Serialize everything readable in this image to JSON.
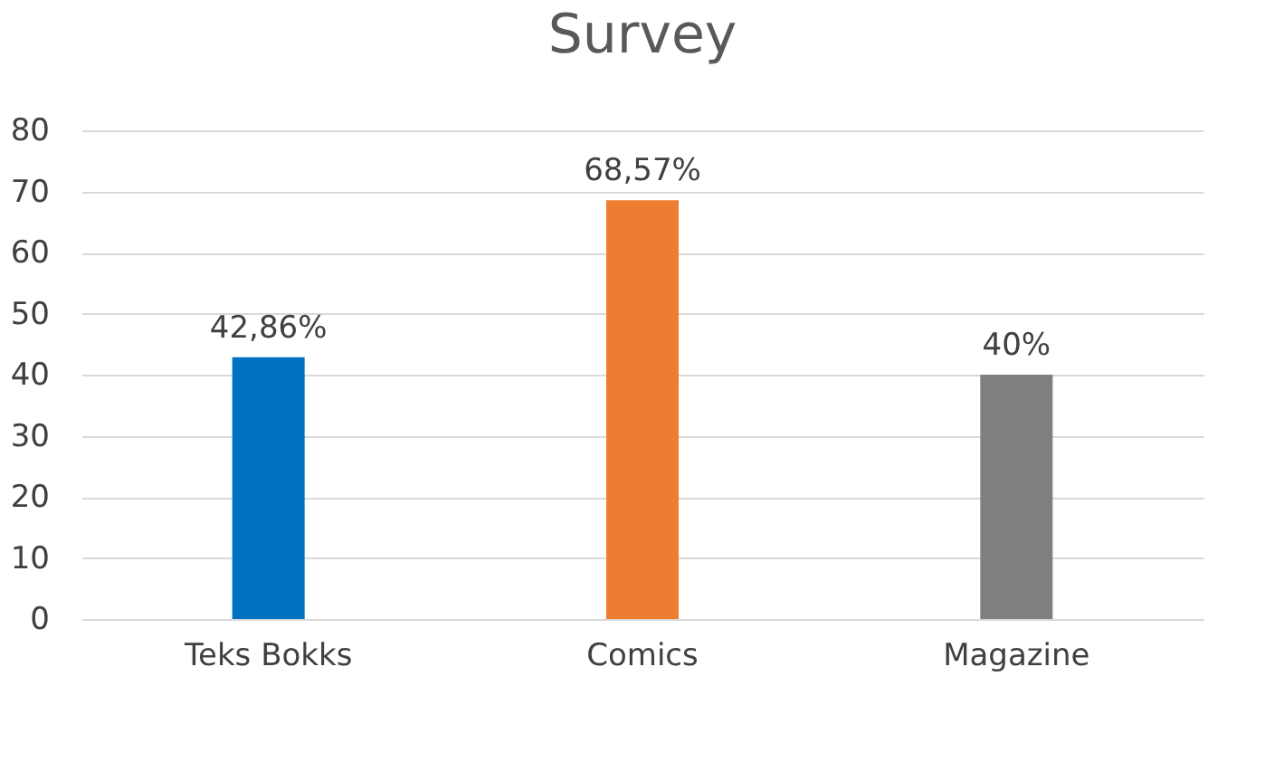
{
  "chart_data": {
    "type": "bar",
    "title": "Survey",
    "categories": [
      "Teks Bokks",
      "Comics",
      "Magazine"
    ],
    "values": [
      42.86,
      68.57,
      40
    ],
    "colors": [
      "#0070c0",
      "#ed7d31",
      "#7f7f7f"
    ],
    "value_labels": [
      "42,86%",
      "68,57%",
      "40%"
    ],
    "ylim": [
      0,
      80
    ],
    "yticks": [
      0,
      10,
      20,
      30,
      40,
      50,
      60,
      70,
      80
    ],
    "grid": "y"
  }
}
